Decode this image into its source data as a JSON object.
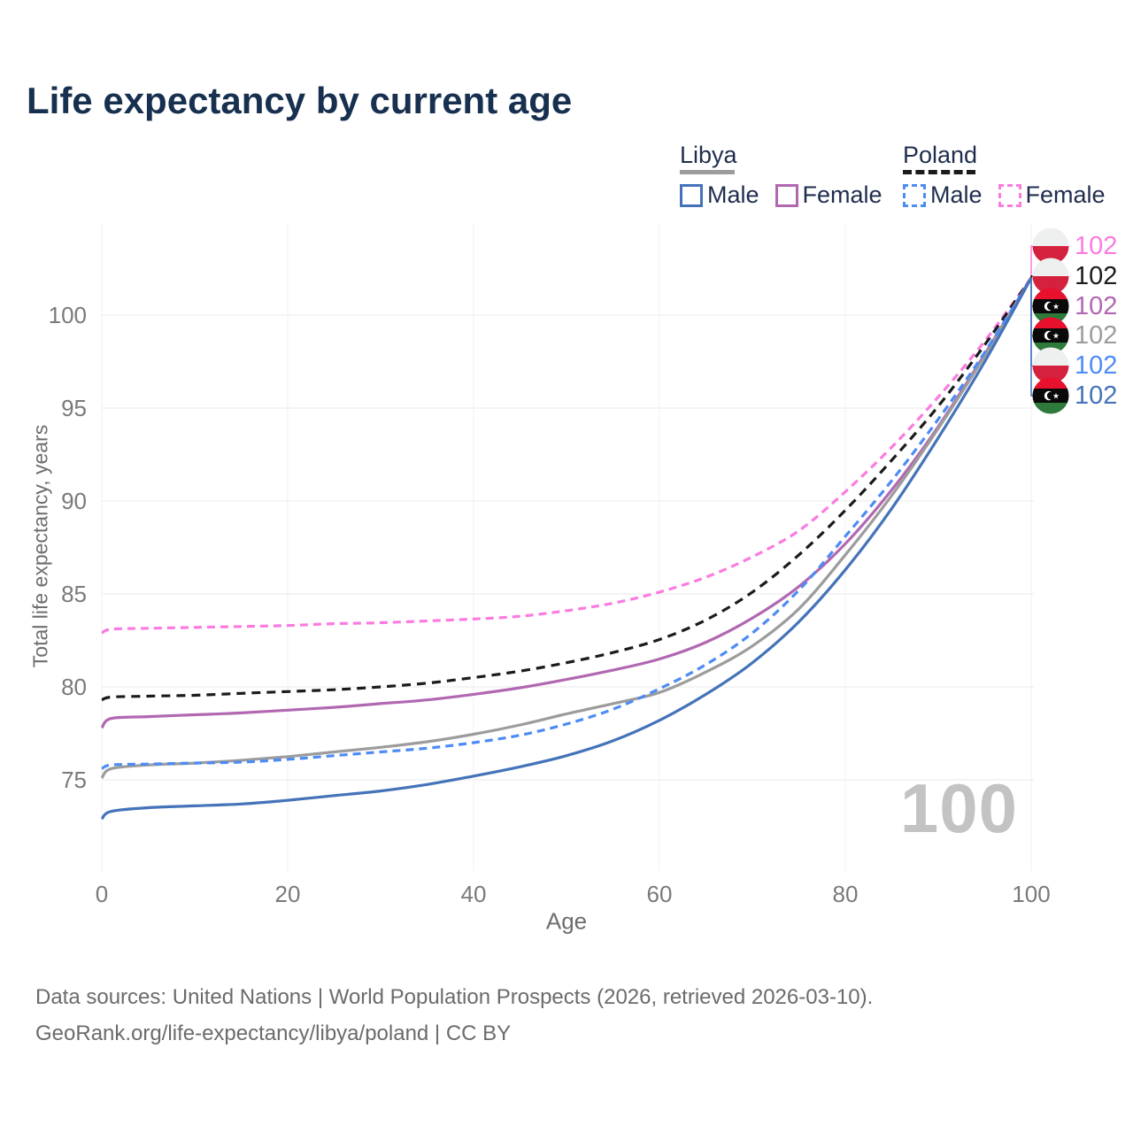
{
  "title": "Life expectancy by current age",
  "legend": {
    "libya": {
      "label": "Libya",
      "male": "Male",
      "female": "Female",
      "style": "solid",
      "group_line_color": "#9c9c9c",
      "male_color": "#4473b9",
      "female_color": "#b168b1"
    },
    "poland": {
      "label": "Poland",
      "male": "Male",
      "female": "Female",
      "style": "dashed",
      "group_line_color": "#1b1b1b",
      "male_color": "#4d8bf5",
      "female_color": "#fb7be0"
    }
  },
  "axes": {
    "x_label": "Age",
    "x_ticks": [
      0,
      20,
      40,
      60,
      80,
      100
    ],
    "y_label": "Total life expectancy, years",
    "y_ticks": [
      75,
      80,
      85,
      90,
      95,
      100
    ]
  },
  "watermark": "100",
  "footer": {
    "line1": "Data sources: United Nations | World Population Prospects (2026, retrieved 2026-03-10).",
    "line2": "GeoRank.org/life-expectancy/libya/poland | CC BY"
  },
  "chart_data": {
    "type": "line",
    "title": "Life expectancy by current age",
    "xlabel": "Age",
    "ylabel": "Total life expectancy, years",
    "xlim": [
      0,
      100
    ],
    "ylim": [
      72,
      103
    ],
    "grid": true,
    "x": [
      0,
      1,
      5,
      10,
      15,
      20,
      25,
      30,
      35,
      40,
      45,
      50,
      55,
      60,
      65,
      70,
      75,
      80,
      85,
      90,
      95,
      100
    ],
    "series": [
      {
        "id": "poland-female",
        "name": "Poland Female",
        "country": "poland",
        "sex": "female",
        "color": "#fb7be0",
        "dash": "9 6",
        "end_label": "102",
        "values": [
          82.9,
          83.1,
          83.15,
          83.2,
          83.25,
          83.3,
          83.4,
          83.45,
          83.55,
          83.65,
          83.8,
          84.1,
          84.5,
          85.1,
          85.9,
          87.0,
          88.4,
          90.5,
          92.9,
          95.6,
          98.6,
          102
        ]
      },
      {
        "id": "poland-total",
        "name": "Poland",
        "country": "poland",
        "sex": "total",
        "color": "#1b1b1b",
        "dash": "10 7",
        "end_label": "102",
        "values": [
          79.3,
          79.45,
          79.5,
          79.55,
          79.65,
          79.75,
          79.85,
          80.0,
          80.2,
          80.5,
          80.85,
          81.3,
          81.85,
          82.55,
          83.6,
          85.1,
          87.1,
          89.5,
          92.2,
          95.1,
          98.4,
          102
        ]
      },
      {
        "id": "libya-female",
        "name": "Libya Female",
        "country": "libya",
        "sex": "female",
        "color": "#b168b1",
        "dash": null,
        "end_label": "102",
        "values": [
          77.8,
          78.3,
          78.4,
          78.5,
          78.6,
          78.75,
          78.9,
          79.1,
          79.3,
          79.6,
          79.95,
          80.4,
          80.9,
          81.5,
          82.4,
          83.7,
          85.4,
          87.7,
          90.6,
          94.0,
          97.9,
          102
        ]
      },
      {
        "id": "libya-total",
        "name": "Libya",
        "country": "libya",
        "sex": "total",
        "color": "#9c9c9c",
        "dash": null,
        "end_label": "102",
        "values": [
          75.1,
          75.6,
          75.8,
          75.9,
          76.05,
          76.25,
          76.5,
          76.75,
          77.05,
          77.45,
          77.95,
          78.55,
          79.1,
          79.7,
          80.8,
          82.2,
          84.2,
          87.1,
          90.3,
          93.9,
          97.8,
          102
        ]
      },
      {
        "id": "poland-male",
        "name": "Poland Male",
        "country": "poland",
        "sex": "male",
        "color": "#4d8bf5",
        "dash": "9 6",
        "end_label": "102",
        "values": [
          75.6,
          75.8,
          75.85,
          75.9,
          75.95,
          76.1,
          76.3,
          76.5,
          76.7,
          77.0,
          77.4,
          78.0,
          78.8,
          79.9,
          81.2,
          82.9,
          85.2,
          88.1,
          91.1,
          94.4,
          98.0,
          102
        ]
      },
      {
        "id": "libya-male",
        "name": "Libya Male",
        "country": "libya",
        "sex": "male",
        "color": "#4473b9",
        "dash": null,
        "end_label": "102",
        "values": [
          72.9,
          73.3,
          73.5,
          73.6,
          73.7,
          73.9,
          74.15,
          74.4,
          74.75,
          75.2,
          75.7,
          76.3,
          77.1,
          78.2,
          79.6,
          81.3,
          83.5,
          86.3,
          89.6,
          93.4,
          97.5,
          102
        ]
      }
    ]
  }
}
